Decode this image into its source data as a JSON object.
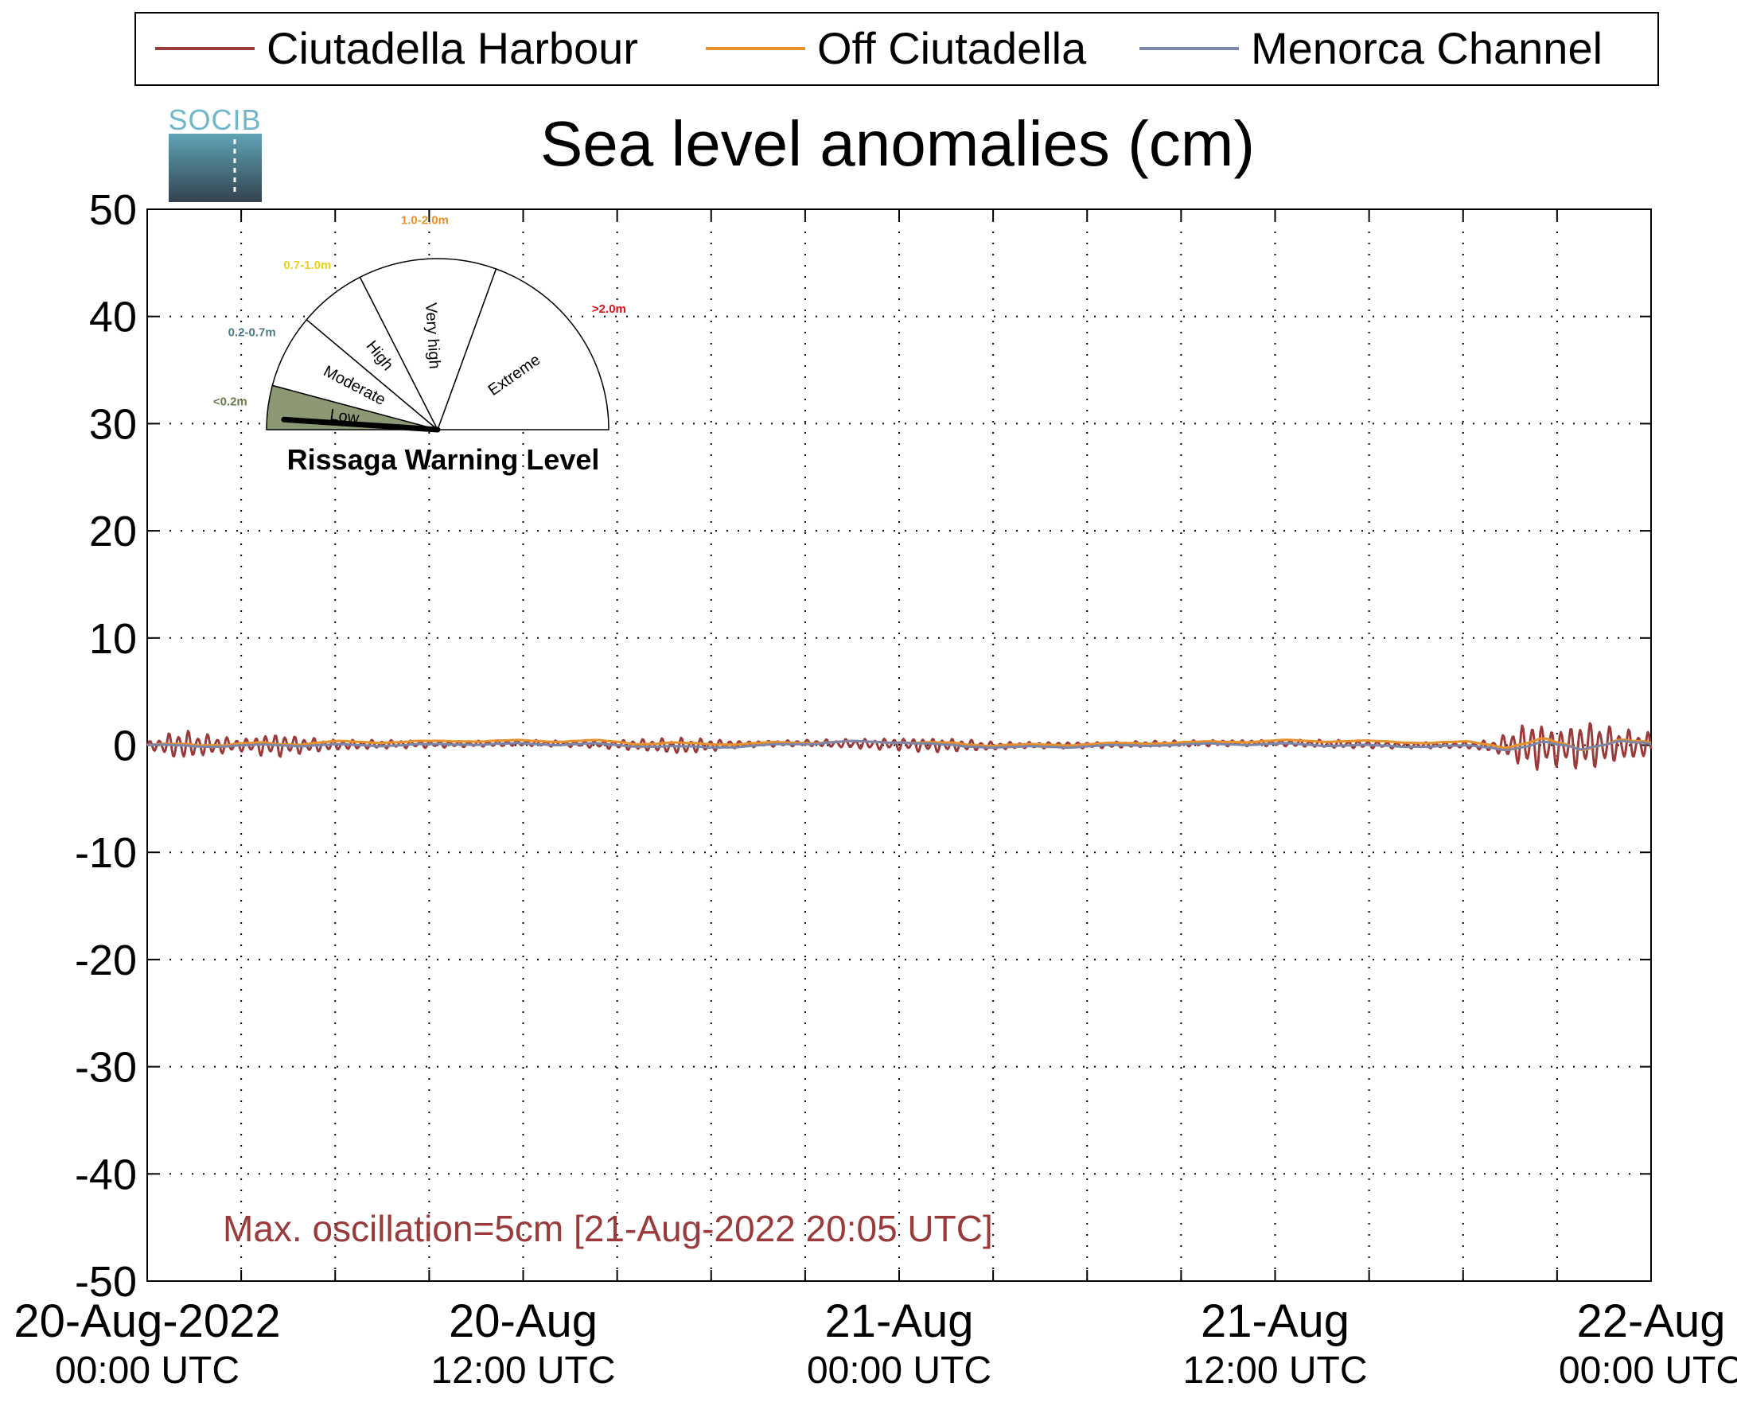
{
  "chart_data": {
    "type": "line",
    "title": "Sea level anomalies (cm)",
    "logo_text": "SOCIB",
    "ylim": [
      -50,
      50
    ],
    "yticks": [
      50,
      40,
      30,
      20,
      10,
      0,
      -10,
      -20,
      -30,
      -40,
      -50
    ],
    "xlim": [
      "2022-08-20 00:00",
      "2022-08-22 00:00"
    ],
    "xticks": [
      {
        "value": "2022-08-20 00:00",
        "line1": "20-Aug-2022",
        "line2": "00:00 UTC"
      },
      {
        "value": "2022-08-20 12:00",
        "line1": "20-Aug",
        "line2": "12:00 UTC"
      },
      {
        "value": "2022-08-21 00:00",
        "line1": "21-Aug",
        "line2": "00:00 UTC"
      },
      {
        "value": "2022-08-21 12:00",
        "line1": "21-Aug",
        "line2": "12:00 UTC"
      },
      {
        "value": "2022-08-22 00:00",
        "line1": "22-Aug",
        "line2": "00:00 UTC"
      }
    ],
    "grid": true,
    "legend_position": "top",
    "annotation": "Max. oscillation=5cm [21-Aug-2022 20:05 UTC]",
    "series": [
      {
        "name": "Ciutadella Harbour",
        "color": "#9b3a3a",
        "x": [
          "2022-08-20 00:00",
          "2022-08-20 01:00",
          "2022-08-20 02:00",
          "2022-08-20 03:00",
          "2022-08-20 04:00",
          "2022-08-20 05:00",
          "2022-08-20 06:00",
          "2022-08-20 08:00",
          "2022-08-20 10:00",
          "2022-08-20 12:00",
          "2022-08-20 14:00",
          "2022-08-20 16:00",
          "2022-08-20 17:00",
          "2022-08-20 18:00",
          "2022-08-20 19:00",
          "2022-08-20 21:00",
          "2022-08-20 23:00",
          "2022-08-21 00:00",
          "2022-08-21 01:00",
          "2022-08-21 02:00",
          "2022-08-21 03:00",
          "2022-08-21 04:00",
          "2022-08-21 06:00",
          "2022-08-21 08:00",
          "2022-08-21 10:00",
          "2022-08-21 12:00",
          "2022-08-21 14:00",
          "2022-08-21 16:00",
          "2022-08-21 18:00",
          "2022-08-21 19:00",
          "2022-08-21 20:00",
          "2022-08-21 20:05",
          "2022-08-21 21:00",
          "2022-08-21 22:00",
          "2022-08-21 23:00",
          "2022-08-22 00:00"
        ],
        "amp": [
          0.3,
          1.5,
          1.0,
          0.6,
          1.2,
          0.8,
          0.5,
          0.4,
          0.3,
          0.3,
          0.3,
          0.6,
          0.8,
          0.6,
          0.3,
          0.3,
          0.5,
          0.6,
          0.7,
          0.6,
          0.4,
          0.3,
          0.3,
          0.3,
          0.3,
          0.3,
          0.4,
          0.3,
          0.3,
          0.6,
          2.2,
          2.5,
          1.8,
          2.4,
          1.6,
          1.2
        ],
        "mean": [
          0.0,
          0.0,
          0.0,
          0.0,
          0.0,
          0.0,
          0.0,
          0.1,
          0.1,
          0.2,
          0.1,
          0.0,
          -0.1,
          0.0,
          0.1,
          0.2,
          0.1,
          0.1,
          0.0,
          0.0,
          -0.1,
          0.0,
          0.0,
          0.1,
          0.2,
          0.2,
          0.1,
          0.0,
          0.0,
          -0.1,
          0.0,
          0.0,
          -0.2,
          0.0,
          0.0,
          0.0
        ]
      },
      {
        "name": "Off Ciutadella",
        "color": "#e8902a",
        "x": [
          "2022-08-20 00:00",
          "2022-08-20 02:00",
          "2022-08-20 04:00",
          "2022-08-20 06:00",
          "2022-08-20 08:00",
          "2022-08-20 10:00",
          "2022-08-20 12:00",
          "2022-08-20 14:00",
          "2022-08-20 16:00",
          "2022-08-20 18:00",
          "2022-08-20 20:00",
          "2022-08-20 22:00",
          "2022-08-21 00:00",
          "2022-08-21 02:00",
          "2022-08-21 04:00",
          "2022-08-21 06:00",
          "2022-08-21 08:00",
          "2022-08-21 10:00",
          "2022-08-21 12:00",
          "2022-08-21 14:00",
          "2022-08-21 16:00",
          "2022-08-21 18:00",
          "2022-08-21 20:00",
          "2022-08-21 22:00",
          "2022-08-22 00:00"
        ],
        "amp": [
          0.1,
          0.2,
          0.2,
          0.1,
          0.1,
          0.1,
          0.1,
          0.1,
          0.2,
          0.1,
          0.1,
          0.1,
          0.1,
          0.2,
          0.1,
          0.1,
          0.1,
          0.1,
          0.1,
          0.1,
          0.1,
          0.2,
          0.5,
          0.6,
          0.4
        ],
        "mean": [
          0.0,
          0.1,
          0.1,
          0.3,
          0.3,
          0.4,
          0.4,
          0.4,
          0.2,
          0.1,
          0.2,
          0.3,
          0.3,
          0.1,
          0.0,
          0.1,
          0.2,
          0.3,
          0.4,
          0.4,
          0.3,
          0.2,
          0.1,
          0.1,
          0.2
        ]
      },
      {
        "name": "Menorca Channel",
        "color": "#7b86a8",
        "x": [
          "2022-08-20 00:00",
          "2022-08-20 02:00",
          "2022-08-20 04:00",
          "2022-08-20 06:00",
          "2022-08-20 08:00",
          "2022-08-20 10:00",
          "2022-08-20 12:00",
          "2022-08-20 14:00",
          "2022-08-20 16:00",
          "2022-08-20 18:00",
          "2022-08-20 20:00",
          "2022-08-20 22:00",
          "2022-08-21 00:00",
          "2022-08-21 02:00",
          "2022-08-21 04:00",
          "2022-08-21 06:00",
          "2022-08-21 08:00",
          "2022-08-21 10:00",
          "2022-08-21 12:00",
          "2022-08-21 14:00",
          "2022-08-21 16:00",
          "2022-08-21 18:00",
          "2022-08-21 20:00",
          "2022-08-21 22:00",
          "2022-08-22 00:00"
        ],
        "amp": [
          0.1,
          0.1,
          0.1,
          0.1,
          0.1,
          0.1,
          0.1,
          0.1,
          0.1,
          0.1,
          0.1,
          0.1,
          0.1,
          0.1,
          0.1,
          0.1,
          0.1,
          0.1,
          0.1,
          0.1,
          0.1,
          0.1,
          0.4,
          0.5,
          0.3
        ],
        "mean": [
          0.0,
          -0.1,
          0.0,
          0.0,
          0.0,
          0.1,
          0.1,
          0.1,
          -0.1,
          -0.2,
          0.0,
          0.3,
          0.3,
          -0.1,
          -0.2,
          -0.1,
          0.0,
          0.1,
          0.1,
          0.0,
          -0.1,
          -0.1,
          -0.2,
          0.1,
          0.1
        ]
      }
    ],
    "gauge": {
      "title": "Rissaga Warning Level",
      "level": "Low",
      "needle_value_m": 0.05,
      "sectors": [
        {
          "label": "Low",
          "range": "<0.2m",
          "range_color": "#6b7a4f",
          "fill": "#8c9873",
          "from_m": 0.0,
          "to_m": 0.2
        },
        {
          "label": "Moderate",
          "range": "0.2-0.7m",
          "range_color": "#4f7a86",
          "fill": "none",
          "from_m": 0.2,
          "to_m": 0.7
        },
        {
          "label": "High",
          "range": "0.7-1.0m",
          "range_color": "#e8d21a",
          "fill": "none",
          "from_m": 0.7,
          "to_m": 1.0
        },
        {
          "label": "Very high",
          "range": "1.0-2.0m",
          "range_color": "#e8902a",
          "fill": "none",
          "from_m": 1.0,
          "to_m": 2.0
        },
        {
          "label": "Extreme",
          "range": ">2.0m",
          "range_color": "#e01010",
          "fill": "none",
          "from_m": 2.0,
          "to_m": 3.0
        }
      ]
    }
  }
}
